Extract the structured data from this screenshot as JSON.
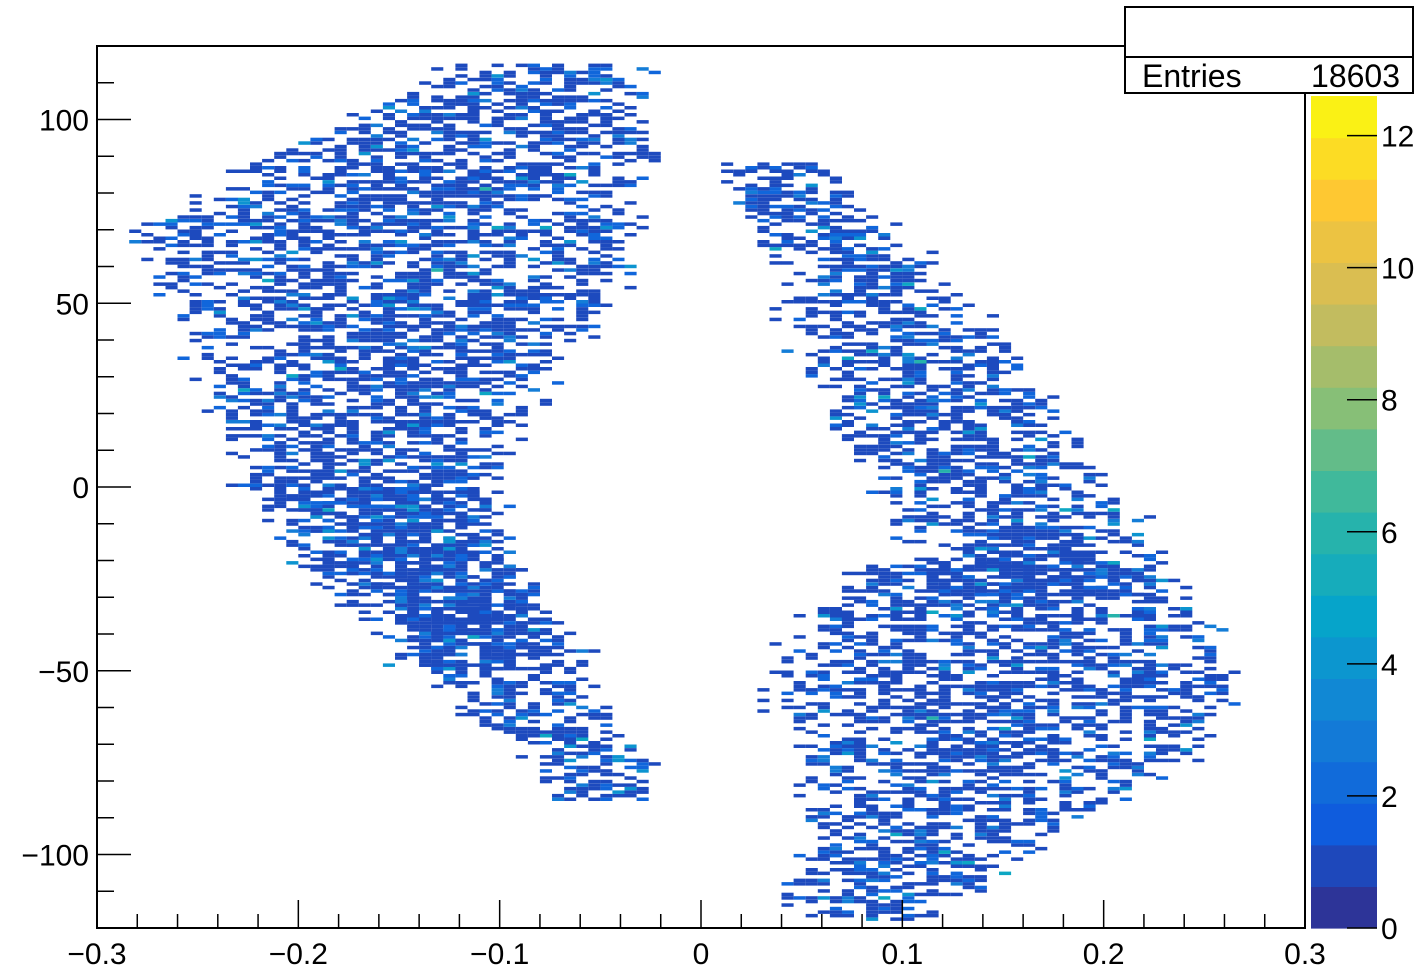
{
  "chart_data": {
    "type": "heatmap",
    "title": "",
    "xlabel": "",
    "ylabel": "",
    "xlim": [
      -0.3,
      0.3
    ],
    "ylim": [
      -120,
      120
    ],
    "x_ticks": [
      -0.3,
      -0.2,
      -0.1,
      0,
      0.1,
      0.2,
      0.3
    ],
    "x_tick_labels": [
      "−0.3",
      "−0.2",
      "−0.1",
      "0",
      "0.1",
      "0.2",
      "0.3"
    ],
    "y_ticks": [
      -100,
      -50,
      0,
      50,
      100
    ],
    "y_tick_labels": [
      "−100",
      "−50",
      "0",
      "50",
      "100"
    ],
    "colorbar": {
      "range": [
        0,
        12.6
      ],
      "ticks": [
        0,
        2,
        4,
        6,
        8,
        10,
        12
      ],
      "tick_labels": [
        "0",
        "2",
        "4",
        "6",
        "8",
        "10",
        "12"
      ],
      "palette": [
        "#352a87",
        "#0f5cdd",
        "#1481d6",
        "#06a4ca",
        "#2eb7a4",
        "#87bf77",
        "#d1bb59",
        "#fec832",
        "#f9fb0e"
      ]
    },
    "stats": {
      "entries_label": "Entries",
      "entries": "18603"
    },
    "regions": [
      {
        "name": "upper-left band",
        "y_profile": [
          [
            -50,
            -0.13,
            -0.09
          ],
          [
            -30,
            -0.17,
            -0.1
          ],
          [
            -10,
            -0.2,
            -0.12
          ],
          [
            10,
            -0.22,
            -0.11
          ],
          [
            30,
            -0.23,
            -0.09
          ],
          [
            50,
            -0.25,
            -0.06
          ],
          [
            70,
            -0.26,
            -0.05
          ],
          [
            90,
            -0.2,
            -0.04
          ],
          [
            105,
            -0.14,
            -0.04
          ],
          [
            115,
            -0.11,
            -0.04
          ]
        ]
      },
      {
        "name": "lower-left band",
        "y_profile": [
          [
            -85,
            -0.06,
            -0.04
          ],
          [
            -75,
            -0.07,
            -0.04
          ],
          [
            -60,
            -0.11,
            -0.06
          ],
          [
            -45,
            -0.13,
            -0.07
          ],
          [
            -30,
            -0.15,
            -0.09
          ],
          [
            -15,
            -0.18,
            -0.11
          ],
          [
            0,
            -0.19,
            -0.12
          ]
        ]
      },
      {
        "name": "upper-right band",
        "y_profile": [
          [
            88,
            0.02,
            0.05
          ],
          [
            75,
            0.03,
            0.07
          ],
          [
            60,
            0.05,
            0.1
          ],
          [
            45,
            0.06,
            0.13
          ],
          [
            30,
            0.07,
            0.15
          ],
          [
            15,
            0.08,
            0.17
          ],
          [
            0,
            0.1,
            0.19
          ],
          [
            -15,
            0.12,
            0.21
          ],
          [
            -30,
            0.13,
            0.22
          ]
        ]
      },
      {
        "name": "lower-right band",
        "y_profile": [
          [
            -20,
            0.1,
            0.21
          ],
          [
            -40,
            0.06,
            0.24
          ],
          [
            -55,
            0.05,
            0.25
          ],
          [
            -70,
            0.06,
            0.24
          ],
          [
            -85,
            0.07,
            0.19
          ],
          [
            -100,
            0.07,
            0.15
          ],
          [
            -110,
            0.05,
            0.12
          ],
          [
            -118,
            0.07,
            0.1
          ]
        ]
      }
    ]
  }
}
